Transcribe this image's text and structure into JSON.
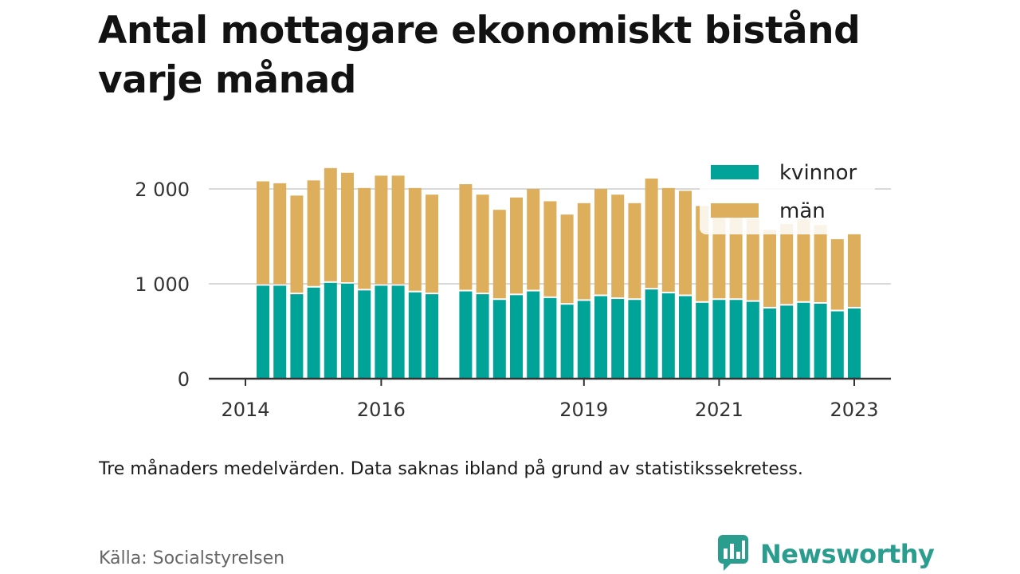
{
  "title": "Antal mottagare ekonomiskt bistånd varje månad",
  "note": "Tre månaders medelvärden. Data saknas ibland på grund av statistikssekretess.",
  "source": "Källa: Socialstyrelsen",
  "brand": {
    "name": "Newsworthy",
    "icon": "newsworthy-logo-icon",
    "color": "#2a9d8f"
  },
  "colors": {
    "kvinnor": "#00a397",
    "man": "#ddaf5c",
    "grid": "#d9d9d9",
    "axis": "#333333"
  },
  "legend": {
    "items": [
      "kvinnor",
      "män"
    ],
    "placement": "top-right"
  },
  "chart_data": {
    "type": "bar",
    "stacked": true,
    "x_unit": "quarter",
    "ylim": [
      0,
      2200
    ],
    "yticks": [
      0,
      1000,
      2000
    ],
    "ytick_labels": [
      "0",
      "1 000",
      "2 000"
    ],
    "xticks": [
      "2014",
      "2016",
      "2019",
      "2021",
      "2023"
    ],
    "grid": true,
    "categories": [
      "2014 Q2",
      "2014 Q3",
      "2014 Q4",
      "2015 Q1",
      "2015 Q2",
      "2015 Q3",
      "2015 Q4",
      "2016 Q1",
      "2016 Q2",
      "2016 Q3",
      "2016 Q4",
      "2017 Q1",
      "2017 Q2",
      "2017 Q3",
      "2017 Q4",
      "2018 Q1",
      "2018 Q2",
      "2018 Q3",
      "2018 Q4",
      "2019 Q1",
      "2019 Q2",
      "2019 Q3",
      "2019 Q4",
      "2020 Q1",
      "2020 Q2",
      "2020 Q3",
      "2020 Q4",
      "2021 Q1",
      "2021 Q2",
      "2021 Q3",
      "2021 Q4",
      "2022 Q1",
      "2022 Q2",
      "2022 Q3",
      "2022 Q4",
      "2023 Q1"
    ],
    "series": [
      {
        "name": "kvinnor",
        "values": [
          980,
          980,
          890,
          960,
          1010,
          1000,
          930,
          980,
          980,
          910,
          890,
          null,
          920,
          890,
          830,
          880,
          920,
          850,
          780,
          820,
          870,
          840,
          830,
          940,
          900,
          870,
          800,
          830,
          830,
          810,
          740,
          770,
          800,
          790,
          710,
          740
        ]
      },
      {
        "name": "män",
        "values": [
          1100,
          1080,
          1040,
          1130,
          1210,
          1170,
          1080,
          1160,
          1160,
          1100,
          1050,
          null,
          1130,
          1050,
          950,
          1030,
          1080,
          1020,
          950,
          1030,
          1130,
          1100,
          1020,
          1170,
          1110,
          1110,
          1020,
          960,
          960,
          870,
          830,
          860,
          880,
          830,
          760,
          790
        ]
      }
    ]
  }
}
